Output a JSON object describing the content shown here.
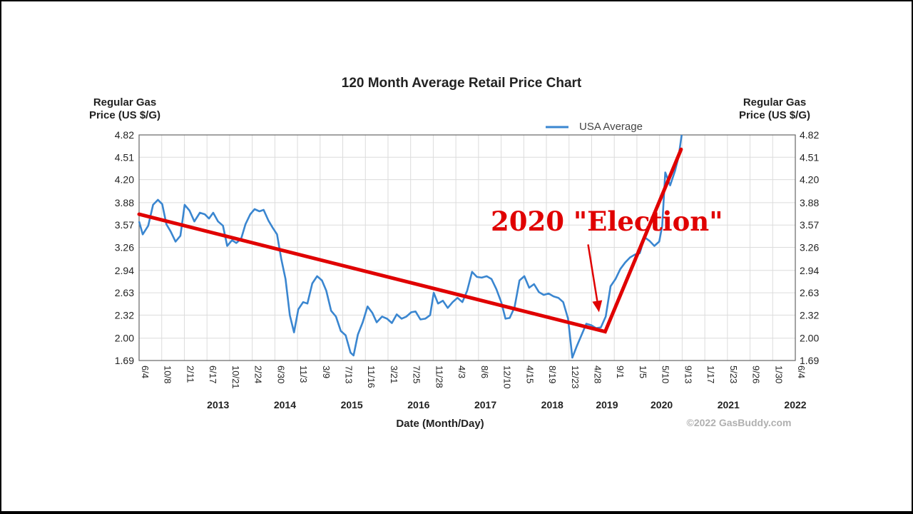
{
  "chart_data": {
    "type": "line",
    "title": "120 Month Average Retail Price Chart",
    "ylabel_left": [
      "Regular Gas",
      "Price (US $/G)"
    ],
    "ylabel_right": [
      "Regular Gas",
      "Price (US $/G)"
    ],
    "xlabel": "Date (Month/Day)",
    "ylim": [
      1.69,
      4.82
    ],
    "y_ticks": [
      "4.82",
      "4.51",
      "4.20",
      "3.88",
      "3.57",
      "3.26",
      "2.94",
      "2.63",
      "2.32",
      "2.00",
      "1.69"
    ],
    "grid": true,
    "legend": {
      "position": "top-right",
      "entries": [
        {
          "name": "USA Average",
          "color": "#3a86d0"
        }
      ]
    },
    "x_tick_labels": [
      "6/4",
      "10/8",
      "2/11",
      "6/17",
      "10/21",
      "2/24",
      "6/30",
      "11/3",
      "3/9",
      "7/13",
      "11/16",
      "3/21",
      "7/25",
      "11/28",
      "4/3",
      "8/6",
      "12/10",
      "4/15",
      "8/19",
      "12/23",
      "4/28",
      "9/1",
      "1/5",
      "5/10",
      "9/13",
      "1/17",
      "5/23",
      "9/26",
      "1/30",
      "6/4"
    ],
    "year_labels": [
      {
        "label": "2013",
        "month": 13
      },
      {
        "label": "2014",
        "month": 24
      },
      {
        "label": "2015",
        "month": 35
      },
      {
        "label": "2016",
        "month": 46
      },
      {
        "label": "2017",
        "month": 57
      },
      {
        "label": "2018",
        "month": 68
      },
      {
        "label": "2019",
        "month": 77
      },
      {
        "label": "2020",
        "month": 86
      },
      {
        "label": "2021",
        "month": 97
      },
      {
        "label": "2022",
        "month": 108
      }
    ],
    "x_range_months": [
      0,
      108
    ],
    "series": [
      {
        "name": "USA Average",
        "color": "#3a86d0",
        "points": [
          [
            0,
            3.62
          ],
          [
            0.6,
            3.44
          ],
          [
            1.5,
            3.56
          ],
          [
            2.3,
            3.85
          ],
          [
            3.1,
            3.92
          ],
          [
            3.8,
            3.86
          ],
          [
            4.5,
            3.58
          ],
          [
            5.2,
            3.48
          ],
          [
            6,
            3.34
          ],
          [
            6.8,
            3.42
          ],
          [
            7.5,
            3.85
          ],
          [
            8.3,
            3.77
          ],
          [
            9.1,
            3.62
          ],
          [
            10,
            3.74
          ],
          [
            10.8,
            3.72
          ],
          [
            11.5,
            3.66
          ],
          [
            12.2,
            3.74
          ],
          [
            13,
            3.62
          ],
          [
            13.8,
            3.56
          ],
          [
            14.5,
            3.28
          ],
          [
            15.3,
            3.36
          ],
          [
            16,
            3.32
          ],
          [
            16.8,
            3.38
          ],
          [
            17.5,
            3.58
          ],
          [
            18.3,
            3.72
          ],
          [
            19,
            3.79
          ],
          [
            19.8,
            3.76
          ],
          [
            20.5,
            3.78
          ],
          [
            21.3,
            3.63
          ],
          [
            22,
            3.53
          ],
          [
            22.7,
            3.44
          ],
          [
            23.4,
            3.1
          ],
          [
            24.1,
            2.82
          ],
          [
            24.8,
            2.32
          ],
          [
            25.5,
            2.08
          ],
          [
            26.2,
            2.4
          ],
          [
            27,
            2.5
          ],
          [
            27.7,
            2.48
          ],
          [
            28.5,
            2.76
          ],
          [
            29.3,
            2.86
          ],
          [
            30.1,
            2.8
          ],
          [
            30.8,
            2.66
          ],
          [
            31.6,
            2.38
          ],
          [
            32.4,
            2.3
          ],
          [
            33.2,
            2.1
          ],
          [
            34,
            2.04
          ],
          [
            34.8,
            1.8
          ],
          [
            35.3,
            1.76
          ],
          [
            36,
            2.05
          ],
          [
            36.8,
            2.22
          ],
          [
            37.6,
            2.44
          ],
          [
            38.4,
            2.35
          ],
          [
            39.1,
            2.22
          ],
          [
            40,
            2.3
          ],
          [
            40.8,
            2.27
          ],
          [
            41.6,
            2.21
          ],
          [
            42.4,
            2.33
          ],
          [
            43.2,
            2.27
          ],
          [
            44,
            2.3
          ],
          [
            44.8,
            2.36
          ],
          [
            45.5,
            2.37
          ],
          [
            46.3,
            2.26
          ],
          [
            47.1,
            2.27
          ],
          [
            47.9,
            2.32
          ],
          [
            48.5,
            2.63
          ],
          [
            49.2,
            2.48
          ],
          [
            50,
            2.52
          ],
          [
            50.8,
            2.42
          ],
          [
            51.6,
            2.5
          ],
          [
            52.4,
            2.56
          ],
          [
            53.2,
            2.5
          ],
          [
            54,
            2.66
          ],
          [
            54.8,
            2.92
          ],
          [
            55.6,
            2.85
          ],
          [
            56.4,
            2.84
          ],
          [
            57.2,
            2.86
          ],
          [
            58,
            2.82
          ],
          [
            58.8,
            2.68
          ],
          [
            59.6,
            2.5
          ],
          [
            60.3,
            2.27
          ],
          [
            61,
            2.28
          ],
          [
            61.8,
            2.43
          ],
          [
            62.6,
            2.8
          ],
          [
            63.4,
            2.86
          ],
          [
            64.2,
            2.7
          ],
          [
            65,
            2.75
          ],
          [
            65.8,
            2.64
          ],
          [
            66.6,
            2.6
          ],
          [
            67.4,
            2.62
          ],
          [
            68.2,
            2.58
          ],
          [
            69,
            2.56
          ],
          [
            69.8,
            2.5
          ],
          [
            70.6,
            2.27
          ],
          [
            71.3,
            1.73
          ],
          [
            72,
            1.88
          ],
          [
            72.8,
            2.04
          ],
          [
            73.6,
            2.2
          ],
          [
            74.4,
            2.18
          ],
          [
            75.2,
            2.14
          ],
          [
            76,
            2.15
          ],
          [
            76.8,
            2.3
          ],
          [
            77.6,
            2.72
          ],
          [
            78.4,
            2.82
          ],
          [
            79.2,
            2.96
          ],
          [
            80,
            3.05
          ],
          [
            80.8,
            3.12
          ],
          [
            81.6,
            3.16
          ],
          [
            82.4,
            3.18
          ],
          [
            83.2,
            3.4
          ],
          [
            84,
            3.35
          ],
          [
            84.8,
            3.28
          ],
          [
            85.6,
            3.34
          ],
          [
            86.1,
            3.56
          ],
          [
            86.6,
            4.3
          ],
          [
            87.4,
            4.12
          ],
          [
            88.2,
            4.32
          ],
          [
            88.8,
            4.52
          ],
          [
            89.3,
            4.82
          ]
        ]
      }
    ],
    "annotation": {
      "text": "2020 \"Election\"",
      "trend_color": "#e00000",
      "trend_points": [
        [
          0,
          3.72
        ],
        [
          76.7,
          2.09
        ],
        [
          89.2,
          4.62
        ]
      ],
      "arrow_from": [
        73.9,
        3.3
      ],
      "arrow_to": [
        75.7,
        2.36
      ]
    },
    "copyright": "©2022 GasBuddy.com"
  }
}
